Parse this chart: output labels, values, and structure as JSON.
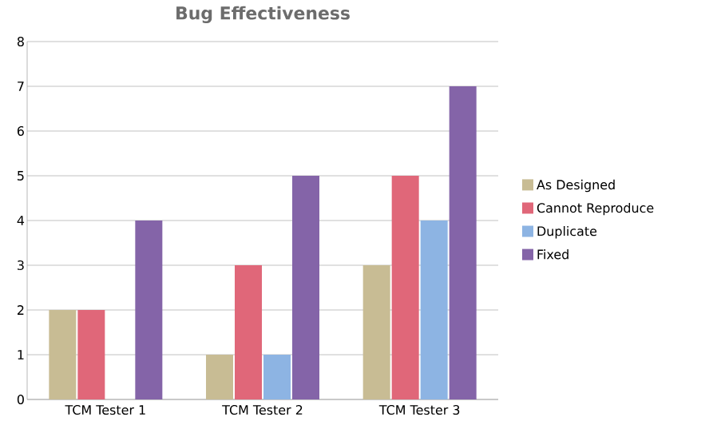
{
  "chart_data": {
    "type": "bar",
    "title": "Bug Effectiveness",
    "categories": [
      "TCM Tester 1",
      "TCM Tester 2",
      "TCM Tester 3"
    ],
    "series": [
      {
        "name": "As Designed",
        "color": "#c8bc94",
        "values": [
          2,
          1,
          3
        ]
      },
      {
        "name": "Cannot Reproduce",
        "color": "#e06779",
        "values": [
          2,
          3,
          5
        ]
      },
      {
        "name": "Duplicate",
        "color": "#8db4e3",
        "values": [
          0,
          1,
          4
        ]
      },
      {
        "name": "Fixed",
        "color": "#8464a8",
        "values": [
          4,
          5,
          7
        ]
      }
    ],
    "ylim": [
      0,
      8
    ],
    "yticks": [
      0,
      1,
      2,
      3,
      4,
      5,
      6,
      7,
      8
    ],
    "grid": "y",
    "legend": "right"
  }
}
